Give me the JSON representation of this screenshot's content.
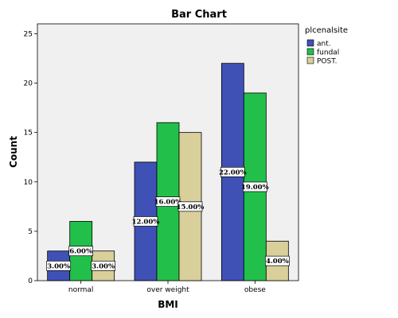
{
  "chart_data": {
    "type": "bar",
    "title": "Bar Chart",
    "xlabel": "BMI",
    "ylabel": "Count",
    "categories": [
      "normal",
      "over weight",
      "obese"
    ],
    "ylim": [
      0,
      26
    ],
    "yticks": [
      0,
      5,
      10,
      15,
      20,
      25
    ],
    "grid": false,
    "legend": {
      "title": "plcenalsite",
      "position": "right"
    },
    "series": [
      {
        "name": "ant.",
        "color": "#3f51b5",
        "values": [
          3,
          12,
          22
        ],
        "labels": [
          "3.00%",
          "12.00%",
          "22.00%"
        ]
      },
      {
        "name": "fundal",
        "color": "#22c04a",
        "values": [
          6,
          16,
          19
        ],
        "labels": [
          "6.00%",
          "16.00%",
          "19.00%"
        ]
      },
      {
        "name": "POST.",
        "color": "#d8cf9a",
        "values": [
          3,
          15,
          4
        ],
        "labels": [
          "3.00%",
          "15.00%",
          "4.00%"
        ]
      }
    ]
  }
}
